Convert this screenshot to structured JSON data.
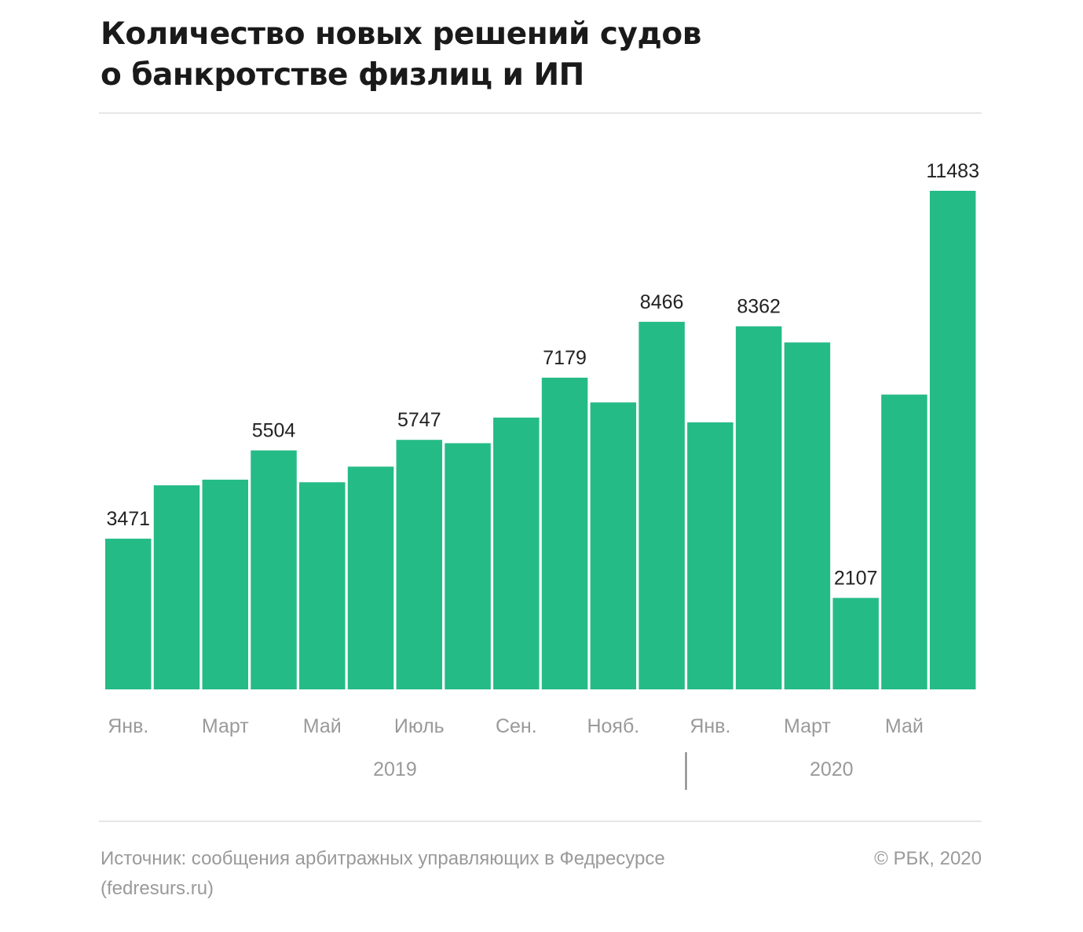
{
  "title": {
    "line1": "Количество новых решений судов",
    "line2": "о банкротстве физлиц и ИП"
  },
  "colors": {
    "bar": "#25bb87",
    "label": "#222222",
    "axis_text": "#9a9a9a",
    "divider": "#777777"
  },
  "chart_data": {
    "type": "bar",
    "title": "Количество новых решений судов о банкротстве физлиц и ИП",
    "values": [
      3471,
      4700,
      4830,
      5504,
      4770,
      5130,
      5747,
      5670,
      6260,
      7179,
      6610,
      8466,
      6150,
      8362,
      7990,
      2107,
      6790,
      11483
    ],
    "data_labels": [
      "3471",
      "",
      "",
      "5504",
      "",
      "",
      "5747",
      "",
      "",
      "7179",
      "",
      "8466",
      "",
      "8362",
      "",
      "2107",
      "",
      "11483"
    ],
    "tick_labels": [
      {
        "index": 0,
        "text": "Янв."
      },
      {
        "index": 2,
        "text": "Март"
      },
      {
        "index": 4,
        "text": "Май"
      },
      {
        "index": 6,
        "text": "Июль"
      },
      {
        "index": 8,
        "text": "Сен."
      },
      {
        "index": 10,
        "text": "Нояб."
      },
      {
        "index": 12,
        "text": "Янв."
      },
      {
        "index": 14,
        "text": "Март"
      },
      {
        "index": 16,
        "text": "Май"
      }
    ],
    "year_groups": [
      {
        "label": "2019",
        "start": 0,
        "end": 11
      },
      {
        "label": "2020",
        "start": 12,
        "end": 17
      }
    ],
    "ylim": [
      0,
      11483
    ],
    "grid": false,
    "legend": "none"
  },
  "footer": {
    "source_line1": "Источник: сообщения арбитражных управляющих в Федресурсе",
    "source_line2": "(fedresurs.ru)",
    "copyright": "© РБК, 2020"
  }
}
